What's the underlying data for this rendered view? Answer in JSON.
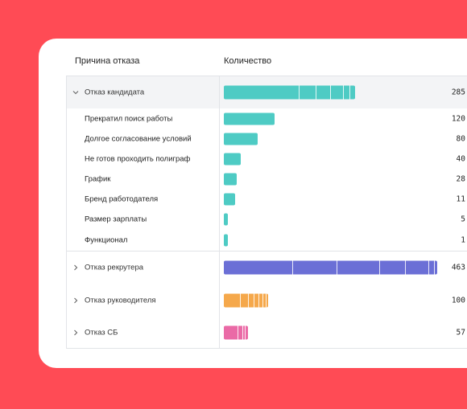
{
  "header": {
    "reason": "Причина отказа",
    "count": "Количество"
  },
  "colors": {
    "candidate": "#4ecbc4",
    "recruiter": "#6b6fd6",
    "manager": "#f5a84b",
    "security": "#ea6aa6"
  },
  "rows": [
    {
      "label": "Отказ кандидата",
      "value": "285",
      "group": true,
      "expanded": true,
      "color": "#4ecbc4",
      "fraction": 0.604
    },
    {
      "label": "Прекратил поиск работы",
      "value": "120",
      "color": "#4ecbc4",
      "fraction": 0.234
    },
    {
      "label": "Долгое согласование условий",
      "value": "80",
      "color": "#4ecbc4",
      "fraction": 0.157
    },
    {
      "label": "Не готов проходить полиграф",
      "value": "40",
      "color": "#4ecbc4",
      "fraction": 0.078
    },
    {
      "label": "График",
      "value": "28",
      "color": "#4ecbc4",
      "fraction": 0.06
    },
    {
      "label": "Бренд работодателя",
      "value": "11",
      "color": "#4ecbc4",
      "fraction": 0.05
    },
    {
      "label": "Размер зарплаты",
      "value": "5",
      "color": "#4ecbc4",
      "fraction": 0.02
    },
    {
      "label": "Функционал",
      "value": "1",
      "color": "#4ecbc4",
      "fraction": 0.015
    },
    {
      "label": "Отказ рекрутера",
      "value": "463",
      "group": true,
      "expanded": false,
      "color": "#6b6fd6",
      "fraction": 0.98
    },
    {
      "label": "Отказ руководителя",
      "value": "100",
      "group": true,
      "expanded": false,
      "color": "#f5a84b",
      "fraction": 0.205
    },
    {
      "label": "Отказ СБ",
      "value": "57",
      "group": true,
      "expanded": false,
      "color": "#ea6aa6",
      "fraction": 0.11
    }
  ]
}
